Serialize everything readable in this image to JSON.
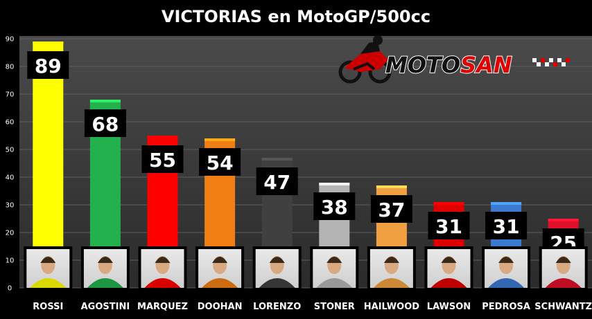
{
  "chart_data": {
    "type": "bar",
    "title": "VICTORIAS en MotoGP/500cc",
    "xlabel": "",
    "ylabel": "",
    "ylim": [
      0,
      90
    ],
    "yticks": [
      0,
      10,
      20,
      30,
      40,
      50,
      60,
      70,
      80,
      90
    ],
    "grid": true,
    "legend": "none",
    "categories": [
      "ROSSI",
      "AGOSTINI",
      "MARQUEZ",
      "DOOHAN",
      "LORENZO",
      "STONER",
      "HAILWOOD",
      "LAWSON",
      "PEDROSA",
      "SCHWANTZ"
    ],
    "values": [
      89,
      68,
      55,
      54,
      47,
      38,
      37,
      31,
      31,
      25
    ],
    "colors": [
      "#ffff00",
      "#22b14c",
      "#ff0000",
      "#f07e12",
      "#404040",
      "#b4b4b4",
      "#f0a040",
      "#e00000",
      "#3a7ad0",
      "#e0102a"
    ]
  },
  "logo": {
    "prefix": "MOTO",
    "suffix": "SAN",
    "icon": "motorcycle-rider-icon"
  },
  "photo_icon": "rider-portrait-icon"
}
